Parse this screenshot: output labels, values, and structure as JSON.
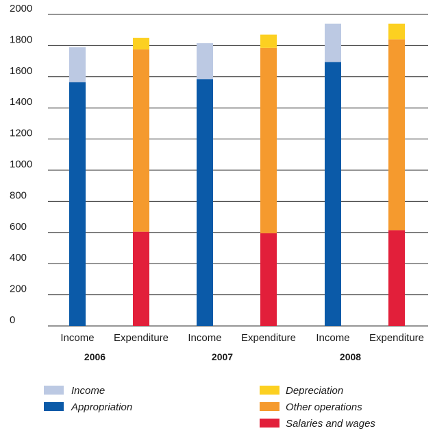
{
  "chart_data": {
    "type": "bar",
    "stacked": true,
    "title": "",
    "xlabel": "",
    "ylabel": "",
    "ylim": [
      0,
      2000
    ],
    "yticks": [
      0,
      200,
      400,
      600,
      800,
      1000,
      1200,
      1400,
      1600,
      1800,
      2000
    ],
    "grid": "horizontal",
    "legend_position": "bottom",
    "groups": [
      {
        "label": "2006",
        "bars": [
          {
            "label": "Income",
            "segments": [
              {
                "series": "Appropriation",
                "value": 1565
              },
              {
                "series": "Income",
                "value": 225
              }
            ]
          },
          {
            "label": "Expenditure",
            "segments": [
              {
                "series": "Salaries and wages",
                "value": 605
              },
              {
                "series": "Other operations",
                "value": 1170
              },
              {
                "series": "Depreciation",
                "value": 75
              }
            ]
          }
        ]
      },
      {
        "label": "2007",
        "bars": [
          {
            "label": "Income",
            "segments": [
              {
                "series": "Appropriation",
                "value": 1585
              },
              {
                "series": "Income",
                "value": 230
              }
            ]
          },
          {
            "label": "Expenditure",
            "segments": [
              {
                "series": "Salaries and wages",
                "value": 595
              },
              {
                "series": "Other operations",
                "value": 1190
              },
              {
                "series": "Depreciation",
                "value": 85
              }
            ]
          }
        ]
      },
      {
        "label": "2008",
        "bars": [
          {
            "label": "Income",
            "segments": [
              {
                "series": "Appropriation",
                "value": 1695
              },
              {
                "series": "Income",
                "value": 245
              }
            ]
          },
          {
            "label": "Expenditure",
            "segments": [
              {
                "series": "Salaries and wages",
                "value": 615
              },
              {
                "series": "Other operations",
                "value": 1225
              },
              {
                "series": "Depreciation",
                "value": 100
              }
            ]
          }
        ]
      }
    ],
    "legend": {
      "left": [
        {
          "name": "Income",
          "color": "#bcc9e3"
        },
        {
          "name": "Appropriation",
          "color": "#0b5aa8"
        }
      ],
      "right": [
        {
          "name": "Depreciation",
          "color": "#fcd021"
        },
        {
          "name": "Other operations",
          "color": "#f59a2e"
        },
        {
          "name": "Salaries and wages",
          "color": "#e21f3a"
        }
      ]
    },
    "colors": {
      "Income": "#bcc9e3",
      "Appropriation": "#0b5aa8",
      "Depreciation": "#fcd021",
      "Other operations": "#f59a2e",
      "Salaries and wages": "#e21f3a"
    }
  }
}
